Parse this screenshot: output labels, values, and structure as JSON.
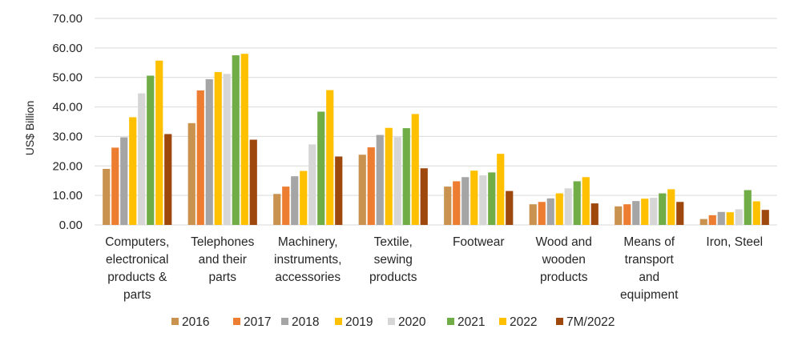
{
  "chart_data": {
    "type": "bar",
    "ylabel": "US$ Billion",
    "ylim": [
      0,
      70
    ],
    "yticks": [
      "0.00",
      "10.00",
      "20.00",
      "30.00",
      "40.00",
      "50.00",
      "60.00",
      "70.00"
    ],
    "grid": true,
    "legend_position": "bottom",
    "categories": [
      [
        "Computers,",
        "electronical",
        "products &",
        "parts"
      ],
      [
        "Telephones",
        "and their",
        "parts"
      ],
      [
        "Machinery,",
        "instruments,",
        "accessories"
      ],
      [
        "Textile,",
        "sewing",
        "products"
      ],
      [
        "Footwear"
      ],
      [
        "Wood and",
        "wooden",
        "products"
      ],
      [
        "Means of",
        "transport",
        "and",
        "equipment"
      ],
      [
        "Iron, Steel"
      ]
    ],
    "series": [
      {
        "name": "2016",
        "color": "#c9924e",
        "values": [
          19.0,
          34.5,
          10.5,
          23.8,
          13.0,
          7.0,
          6.3,
          2.0
        ]
      },
      {
        "name": "2017",
        "color": "#ed7d31",
        "values": [
          26.2,
          45.6,
          13.0,
          26.3,
          14.8,
          7.8,
          7.0,
          3.3
        ]
      },
      {
        "name": "2018",
        "color": "#a5a5a5",
        "values": [
          29.7,
          49.4,
          16.5,
          30.5,
          16.2,
          9.0,
          8.1,
          4.4
        ]
      },
      {
        "name": "2019",
        "color": "#ffc000",
        "values": [
          36.5,
          51.8,
          18.3,
          32.9,
          18.4,
          10.7,
          8.9,
          4.3
        ]
      },
      {
        "name": "2020",
        "color": "#d6d6d6",
        "values": [
          44.6,
          51.2,
          27.3,
          29.8,
          16.8,
          12.4,
          9.2,
          5.3
        ]
      },
      {
        "name": "2021",
        "color": "#70ad47",
        "values": [
          50.6,
          57.5,
          38.4,
          32.8,
          17.8,
          14.8,
          10.7,
          11.8
        ]
      },
      {
        "name": "2022",
        "color": "#ffc000",
        "values": [
          55.7,
          58.0,
          45.7,
          37.6,
          24.1,
          16.2,
          12.1,
          8.0
        ]
      },
      {
        "name": "7M/2022",
        "color": "#9e480e",
        "values": [
          30.8,
          28.9,
          23.2,
          19.2,
          11.5,
          7.3,
          7.8,
          5.1
        ]
      }
    ]
  }
}
